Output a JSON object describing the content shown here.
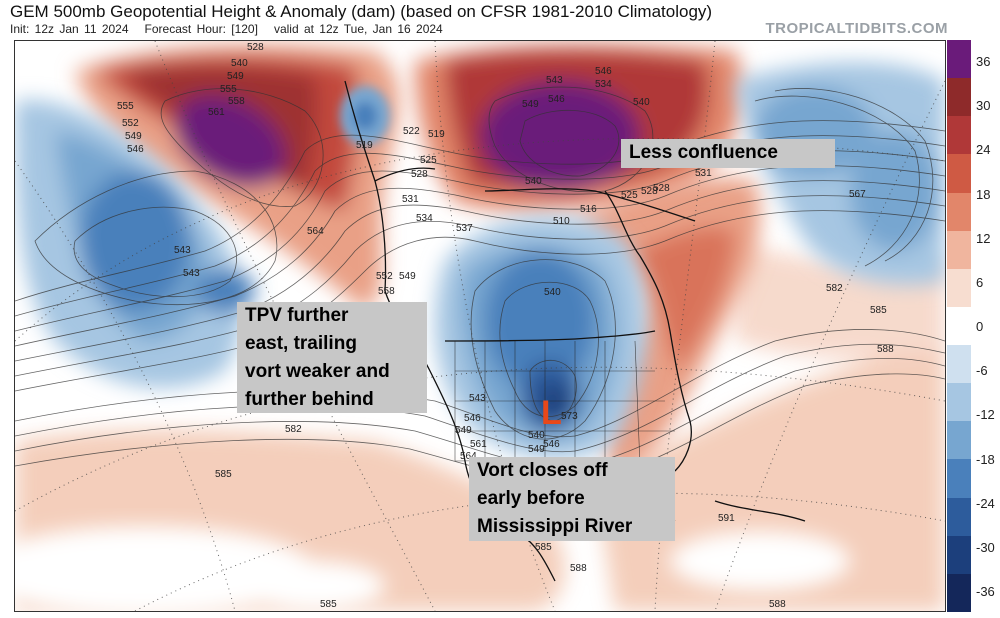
{
  "header": {
    "title": "GEM 500mb Geopotential Height & Anomaly (dam) (based on CFSR 1981-2010 Climatology)",
    "init": "Init: 12z Jan 11 2024",
    "forecast_hour": "Forecast Hour: [120]",
    "valid": "valid at 12z Tue, Jan 16 2024",
    "source": "TROPICALTIDBITS.COM"
  },
  "colorbar": {
    "labels": [
      "36",
      "30",
      "24",
      "18",
      "12",
      "6",
      "0",
      "-6",
      "-12",
      "-18",
      "-24",
      "-30",
      "-36"
    ],
    "colors": [
      "#6a1b7a",
      "#8e2a2a",
      "#b03838",
      "#cf5a44",
      "#e2866a",
      "#f0b59e",
      "#f7ddd0",
      "#ffffff",
      "#cfe0ef",
      "#a6c6e2",
      "#77a6d0",
      "#4a80bb",
      "#2d5c9c",
      "#1c3f7c",
      "#14275a"
    ]
  },
  "annotations": {
    "less_confluence": "Less confluence",
    "tpv": [
      "TPV further",
      "east, trailing",
      "vort weaker and",
      "further behind"
    ],
    "vort": [
      "Vort closes off",
      "early before",
      "Mississippi River"
    ],
    "low_marker": "L"
  },
  "contour_labels": [
    "528",
    "540",
    "549",
    "555",
    "558",
    "561",
    "555",
    "552",
    "549",
    "546",
    "519",
    "522",
    "519",
    "525",
    "528",
    "531",
    "534",
    "537",
    "543",
    "546",
    "549",
    "546",
    "534",
    "540",
    "528",
    "540",
    "525",
    "528",
    "531",
    "510",
    "516",
    "564",
    "567",
    "543",
    "543",
    "552",
    "549",
    "558",
    "540",
    "582",
    "585",
    "588",
    "582",
    "585",
    "573",
    "543",
    "546",
    "549",
    "561",
    "564",
    "540",
    "549",
    "546",
    "585",
    "588",
    "591",
    "588",
    "585"
  ]
}
